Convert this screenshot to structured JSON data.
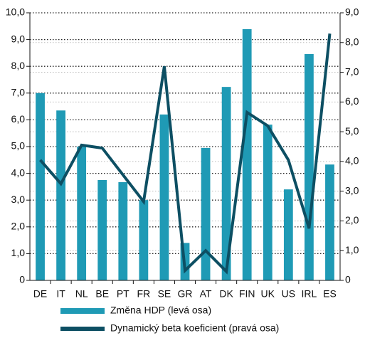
{
  "chart_data": {
    "type": "bar",
    "categories": [
      "DE",
      "IT",
      "NL",
      "BE",
      "PT",
      "FR",
      "SE",
      "GR",
      "AT",
      "DK",
      "FIN",
      "UK",
      "US",
      "IRL",
      "ES"
    ],
    "series": [
      {
        "name": "Změna HDP (levá osa)",
        "type": "bar",
        "color": "#1f9ab5",
        "axis": "y",
        "values": [
          7.0,
          6.35,
          5.0,
          3.75,
          3.67,
          3.0,
          6.2,
          1.4,
          4.95,
          7.23,
          9.39,
          5.82,
          3.4,
          8.46,
          4.33
        ]
      },
      {
        "name": "Dynamický beta koeficient (pravá osa)",
        "type": "line",
        "color": "#0d4f63",
        "axis": "y2",
        "values": [
          4.05,
          3.25,
          4.55,
          4.45,
          3.55,
          2.65,
          7.2,
          0.33,
          1.0,
          0.3,
          5.65,
          5.2,
          4.05,
          1.75,
          8.3
        ]
      }
    ],
    "ylim": [
      0,
      10
    ],
    "yticks": [
      0,
      {
        "value": 1,
        "label": "1,0"
      },
      {
        "value": 2,
        "label": "2,0"
      },
      {
        "value": 3,
        "label": "3,0"
      },
      {
        "value": 4,
        "label": "4,0"
      },
      {
        "value": 5,
        "label": "5,0"
      },
      {
        "value": 6,
        "label": "6,0"
      },
      {
        "value": 7,
        "label": "7,0"
      },
      {
        "value": 8,
        "label": "8,0"
      },
      {
        "value": 9,
        "label": "9,0"
      },
      {
        "value": 10,
        "label": "10,0"
      }
    ],
    "y2lim": [
      0,
      9
    ],
    "y2ticks": [
      0,
      {
        "value": 1,
        "label": "1,0"
      },
      {
        "value": 2,
        "label": "2,0"
      },
      {
        "value": 3,
        "label": "3,0"
      },
      {
        "value": 4,
        "label": "4,0"
      },
      {
        "value": 5,
        "label": "5,0"
      },
      {
        "value": 6,
        "label": "6,0"
      },
      {
        "value": 7,
        "label": "7,0"
      },
      {
        "value": 8,
        "label": "8,0"
      },
      {
        "value": 9,
        "label": "9,0"
      }
    ],
    "grid": true
  }
}
